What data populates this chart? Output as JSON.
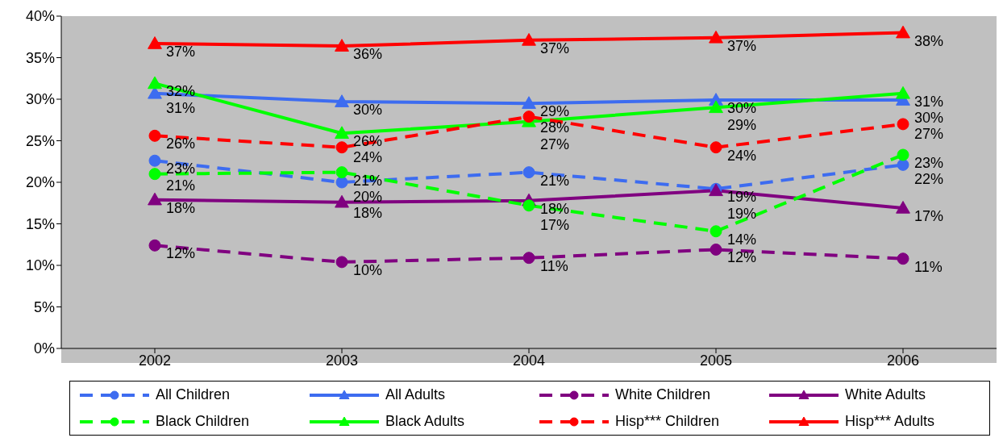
{
  "chart_data": {
    "type": "line",
    "categories": [
      "2002",
      "2003",
      "2004",
      "2005",
      "2006"
    ],
    "ylim": [
      0,
      40
    ],
    "yticks": [
      {
        "value": 0,
        "label": "0%"
      },
      {
        "value": 5,
        "label": "5%"
      },
      {
        "value": 10,
        "label": "10%"
      },
      {
        "value": 15,
        "label": "15%"
      },
      {
        "value": 20,
        "label": "20%"
      },
      {
        "value": 25,
        "label": "25%"
      },
      {
        "value": 30,
        "label": "30%"
      },
      {
        "value": 35,
        "label": "35%"
      },
      {
        "value": 40,
        "label": "40%"
      }
    ],
    "grid": false,
    "legend": "bottom",
    "series": [
      {
        "name": "All Children",
        "color": "#3d6cf0",
        "marker": "circle",
        "line_style": "dashed",
        "values": [
          22.6,
          20.0,
          21.2,
          19.2,
          22.1
        ],
        "value_labels": [
          "23%",
          "20%",
          "21%",
          "19%",
          "22%"
        ]
      },
      {
        "name": "All Adults",
        "color": "#3d6cf0",
        "marker": "triangle",
        "line_style": "solid",
        "values": [
          30.7,
          29.7,
          29.5,
          29.9,
          29.9
        ],
        "value_labels": [
          "31%",
          "30%",
          "29%",
          "30%",
          "30%"
        ]
      },
      {
        "name": "White Children",
        "color": "#800080",
        "marker": "circle",
        "line_style": "dashed",
        "values": [
          12.4,
          10.4,
          10.9,
          11.9,
          10.8
        ],
        "value_labels": [
          "12%",
          "10%",
          "11%",
          "12%",
          "11%"
        ]
      },
      {
        "name": "White Adults",
        "color": "#800080",
        "marker": "triangle",
        "line_style": "solid",
        "values": [
          17.9,
          17.6,
          17.8,
          19.0,
          16.9
        ],
        "value_labels": [
          "18%",
          "18%",
          "18%",
          "19%",
          "17%"
        ]
      },
      {
        "name": "Black Children",
        "color": "#00ff00",
        "marker": "circle",
        "line_style": "dashed",
        "values": [
          21.0,
          21.2,
          17.2,
          14.1,
          23.3
        ],
        "value_labels": [
          "21%",
          "21%",
          "17%",
          "14%",
          "23%"
        ]
      },
      {
        "name": "Black Adults",
        "color": "#00ff00",
        "marker": "triangle",
        "line_style": "solid",
        "values": [
          31.9,
          25.9,
          27.3,
          29.0,
          30.7
        ],
        "value_labels": [
          "32%",
          "26%",
          "27%",
          "29%",
          "31%"
        ]
      },
      {
        "name": "Hisp*** Children",
        "color": "#ff0000",
        "marker": "circle",
        "line_style": "dashed",
        "values": [
          25.6,
          24.2,
          27.9,
          24.2,
          27.0
        ],
        "value_labels": [
          "26%",
          "24%",
          "28%",
          "24%",
          "27%"
        ]
      },
      {
        "name": "Hisp*** Adults",
        "color": "#ff0000",
        "marker": "triangle",
        "line_style": "solid",
        "values": [
          36.7,
          36.4,
          37.1,
          37.4,
          38.0
        ],
        "value_labels": [
          "37%",
          "36%",
          "37%",
          "37%",
          "38%"
        ]
      }
    ]
  }
}
